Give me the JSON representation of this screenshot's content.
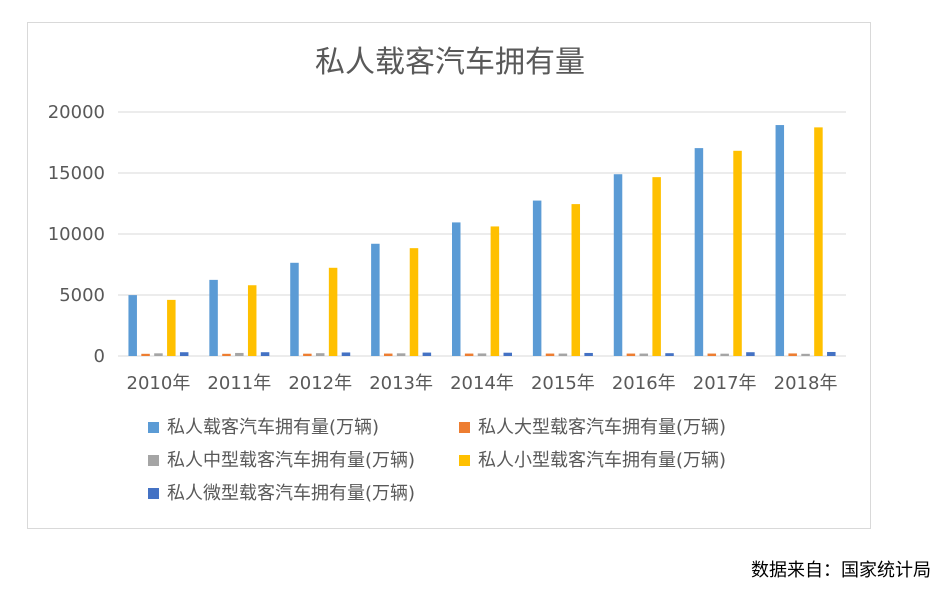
{
  "chart_data": {
    "type": "bar",
    "title": "私人载客汽车拥有量",
    "xlabel": "",
    "ylabel": "",
    "categories": [
      "2010年",
      "2011年",
      "2012年",
      "2013年",
      "2014年",
      "2015年",
      "2016年",
      "2017年",
      "2018年"
    ],
    "ylim": [
      0,
      20000
    ],
    "yticks": [
      0,
      5000,
      10000,
      15000,
      20000
    ],
    "grid": true,
    "legend_position": "bottom",
    "series": [
      {
        "name": "私人载客汽车拥有量(万辆)",
        "color": "#5b9bd5",
        "values": [
          4990,
          6240,
          7640,
          9200,
          10950,
          12740,
          14900,
          17040,
          18930
        ]
      },
      {
        "name": "私人大型载客汽车拥有量(万辆)",
        "color": "#ed7d31",
        "values": [
          180,
          180,
          190,
          200,
          200,
          200,
          200,
          200,
          210
        ]
      },
      {
        "name": "私人中型载客汽车拥有量(万辆)",
        "color": "#a5a5a5",
        "values": [
          220,
          250,
          230,
          220,
          210,
          200,
          200,
          190,
          180
        ]
      },
      {
        "name": "私人小型载客汽车拥有量(万辆)",
        "color": "#ffc000",
        "values": [
          4600,
          5800,
          7230,
          8840,
          10620,
          12450,
          14660,
          16820,
          18740
        ]
      },
      {
        "name": "私人微型载客汽车拥有量(万辆)",
        "color": "#4472c4",
        "values": [
          310,
          310,
          290,
          280,
          270,
          250,
          230,
          310,
          330
        ]
      }
    ]
  },
  "source_note": "数据来自：国家统计局"
}
